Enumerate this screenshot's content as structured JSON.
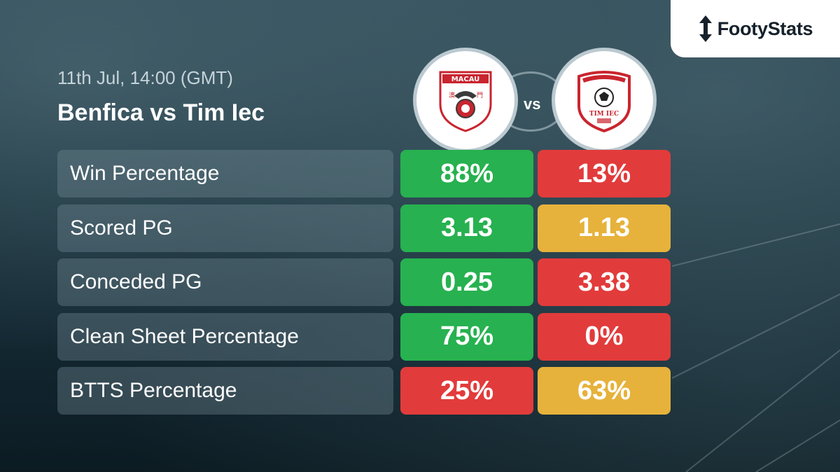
{
  "brand": {
    "name": "FootyStats",
    "icon": "up-down-arrow-icon"
  },
  "match": {
    "datetime": "11th Jul, 14:00 (GMT)",
    "title": "Benfica vs Tim Iec",
    "vs_label": "vs"
  },
  "teams": {
    "home": {
      "crest_text": "MACAU",
      "crest_icon": "benfica-macau-crest"
    },
    "away": {
      "crest_text": "TIM IEC",
      "crest_icon": "tim-iec-crest"
    }
  },
  "colors": {
    "good": "#27b150",
    "bad": "#e23b3b",
    "mid": "#e6b23b"
  },
  "stats": [
    {
      "label": "Win Percentage",
      "home": "88%",
      "away": "13%",
      "home_color": "#27b150",
      "away_color": "#e23b3b"
    },
    {
      "label": "Scored PG",
      "home": "3.13",
      "away": "1.13",
      "home_color": "#27b150",
      "away_color": "#e6b23b"
    },
    {
      "label": "Conceded PG",
      "home": "0.25",
      "away": "3.38",
      "home_color": "#27b150",
      "away_color": "#e23b3b"
    },
    {
      "label": "Clean Sheet Percentage",
      "home": "75%",
      "away": "0%",
      "home_color": "#27b150",
      "away_color": "#e23b3b"
    },
    {
      "label": "BTTS Percentage",
      "home": "25%",
      "away": "63%",
      "home_color": "#e23b3b",
      "away_color": "#e6b23b"
    }
  ]
}
